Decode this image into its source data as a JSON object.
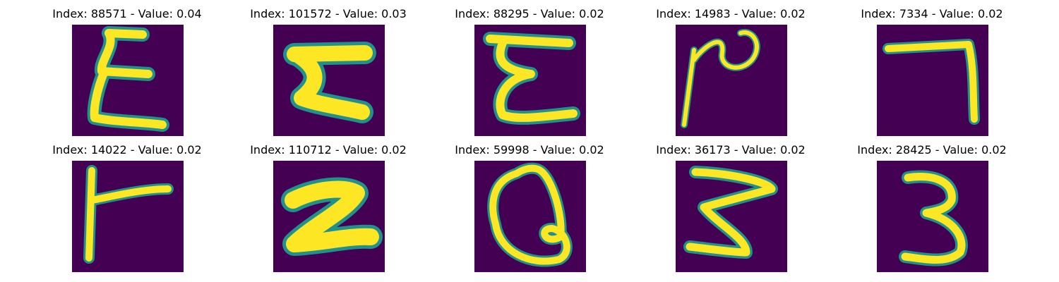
{
  "panels": [
    {
      "title": "Index: 88571 - Value: 0.04",
      "image": "handwritten-glyph-epsilon"
    },
    {
      "title": "Index: 101572 - Value: 0.03",
      "image": "handwritten-glyph-h-rotated"
    },
    {
      "title": "Index: 88295 - Value: 0.02",
      "image": "handwritten-glyph-epsilon"
    },
    {
      "title": "Index: 14983 - Value: 0.02",
      "image": "handwritten-glyph-squiggle"
    },
    {
      "title": "Index: 7334 - Value: 0.02",
      "image": "handwritten-glyph-seven"
    },
    {
      "title": "Index: 14022 - Value: 0.02",
      "image": "handwritten-glyph-f-rotated"
    },
    {
      "title": "Index: 110712 - Value: 0.02",
      "image": "handwritten-glyph-z-bold"
    },
    {
      "title": "Index: 59998 - Value: 0.02",
      "image": "handwritten-glyph-q-loop"
    },
    {
      "title": "Index: 36173 - Value: 0.02",
      "image": "handwritten-glyph-three-reversed"
    },
    {
      "title": "Index: 28425 - Value: 0.02",
      "image": "handwritten-glyph-three"
    }
  ],
  "colors": {
    "background": "#440154",
    "stroke_edge": "#21918c",
    "stroke_core": "#fde725"
  }
}
